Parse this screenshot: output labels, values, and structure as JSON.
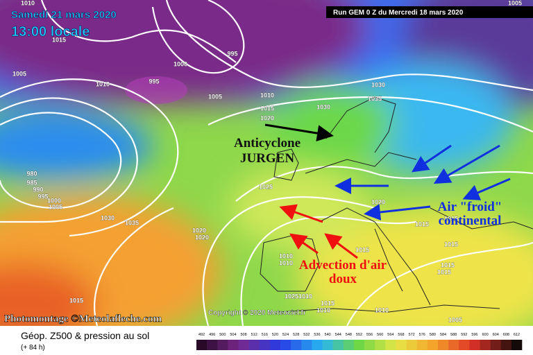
{
  "header": {
    "date": "Samedi 21 mars 2020",
    "time": "13:00 locale",
    "run": "Run GEM 0 Z du Mercredi 18 mars 2020"
  },
  "annotations": {
    "anticyclone": [
      "Anticyclone",
      "JURGEN"
    ],
    "cold_air": [
      "Air \"froid\"",
      "continental"
    ],
    "warm_air": [
      "Advection d'air",
      "doux"
    ]
  },
  "credits": {
    "photomontage": "Photomontage ©Meteolafleche.com",
    "copyright": "Copyright © 2020 Meteociel.fr"
  },
  "isobar_labels": [
    "1010",
    "1005",
    "1015",
    "995",
    "1000",
    "1005",
    "1010",
    "995",
    "1005",
    "1010",
    "1030",
    "1035",
    "1015",
    "1030",
    "1020",
    "980",
    "985",
    "990",
    "995",
    "1000",
    "1005",
    "1025",
    "1020",
    "1030",
    "1035",
    "1020",
    "1020",
    "1015",
    "1015",
    "1015",
    "1015",
    "1010",
    "1010",
    "1015",
    "1015",
    "1025",
    "1010",
    "1015",
    "1010",
    "1010",
    "1005",
    "1015"
  ],
  "legend": {
    "title": "Géop. Z500 & pression au sol",
    "subtitle": "(+ 84 h)",
    "scale": [
      "492",
      "496",
      "500",
      "504",
      "508",
      "512",
      "516",
      "520",
      "524",
      "528",
      "532",
      "536",
      "540",
      "544",
      "548",
      "552",
      "556",
      "560",
      "564",
      "568",
      "572",
      "576",
      "580",
      "584",
      "588",
      "592",
      "596",
      "600",
      "604",
      "608",
      "612"
    ]
  }
}
